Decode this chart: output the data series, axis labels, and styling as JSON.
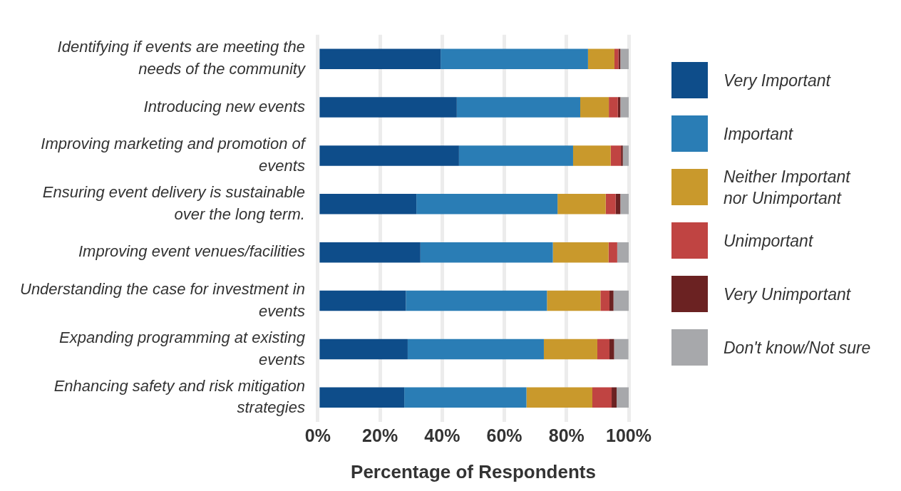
{
  "chart_data": {
    "type": "bar",
    "orientation": "horizontal",
    "stacked": true,
    "xlabel": "Percentage of Respondents",
    "categories": [
      "Identifying if events are meeting the needs of the community",
      "Introducing new events",
      "Improving marketing and promotion of events",
      "Ensuring event delivery is sustainable over the long term.",
      "Improving event venues/facilities",
      "Understanding the case for investment in events",
      "Expanding programming at existing events",
      "Enhancing safety and risk mitigation strategies"
    ],
    "series": [
      {
        "name": "Very Important",
        "color": "#0e4d8a",
        "values": [
          39.5,
          44.7,
          45.4,
          31.7,
          33.0,
          28.3,
          28.9,
          27.8
        ]
      },
      {
        "name": "Important",
        "color": "#2a7db5",
        "values": [
          47.4,
          39.7,
          36.7,
          45.4,
          42.6,
          45.4,
          43.8,
          39.3
        ]
      },
      {
        "name": "Neither Important nor Unimportant",
        "color": "#c9992c",
        "values": [
          8.5,
          9.2,
          12.1,
          15.5,
          17.9,
          17.2,
          17.2,
          21.2
        ]
      },
      {
        "name": "Unimportant",
        "color": "#c04442",
        "values": [
          1.3,
          2.9,
          3.3,
          3.2,
          2.8,
          2.9,
          3.9,
          6.2
        ]
      },
      {
        "name": "Very Unimportant",
        "color": "#6b2222",
        "values": [
          0.6,
          0.8,
          0.6,
          1.5,
          null,
          1.3,
          1.5,
          1.6
        ]
      },
      {
        "name": "Don't know/Not sure",
        "color": "#a7a8ab",
        "values": [
          2.7,
          2.7,
          2.0,
          2.7,
          3.7,
          4.9,
          4.6,
          3.9
        ]
      }
    ],
    "xlim": [
      0,
      100
    ],
    "xticks": [
      {
        "value": 0,
        "label": "0%"
      },
      {
        "value": 20,
        "label": "20%"
      },
      {
        "value": 40,
        "label": "40%"
      },
      {
        "value": 60,
        "label": "60%"
      },
      {
        "value": 80,
        "label": "80%"
      },
      {
        "value": 100,
        "label": "100%"
      }
    ],
    "grid": "x",
    "legend": "right"
  }
}
